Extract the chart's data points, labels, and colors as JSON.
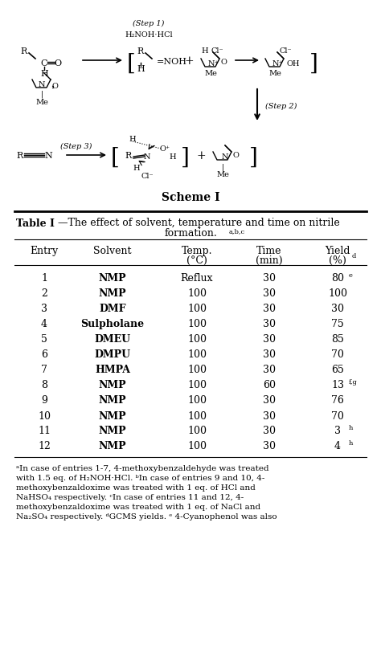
{
  "scheme_label": "Scheme I",
  "table_title_bold": "Table I",
  "table_title_rest": "—The effect of solvent, temperature and time on nitrile",
  "table_title_line2": "formation.",
  "table_title_super": "a,b,c",
  "col_headers": [
    "Entry",
    "Solvent",
    "Temp.",
    "(°C)",
    "Time",
    "(min)",
    "Yield",
    "(%)"
  ],
  "col_header_super": "d",
  "rows": [
    [
      "1",
      "NMP",
      "Reflux",
      "30",
      "80",
      "e",
      "",
      ""
    ],
    [
      "2",
      "NMP",
      "100",
      "30",
      "100",
      "",
      "",
      ""
    ],
    [
      "3",
      "DMF",
      "100",
      "30",
      "30",
      "",
      "",
      ""
    ],
    [
      "4",
      "Sulpholane",
      "100",
      "30",
      "75",
      "",
      "",
      ""
    ],
    [
      "5",
      "DMEU",
      "100",
      "30",
      "85",
      "",
      "",
      ""
    ],
    [
      "6",
      "DMPU",
      "100",
      "30",
      "70",
      "",
      "",
      ""
    ],
    [
      "7",
      "HMPA",
      "100",
      "30",
      "65",
      "",
      "",
      ""
    ],
    [
      "8",
      "NMP",
      "100",
      "60",
      "13",
      "f,g",
      "",
      ""
    ],
    [
      "9",
      "NMP",
      "100",
      "30",
      "76",
      "",
      "",
      ""
    ],
    [
      "10",
      "NMP",
      "100",
      "30",
      "70",
      "",
      "",
      ""
    ],
    [
      "11",
      "NMP",
      "100",
      "30",
      "3",
      "h",
      "",
      ""
    ],
    [
      "12",
      "NMP",
      "100",
      "30",
      "4",
      "h",
      "",
      ""
    ]
  ],
  "footnote_lines": [
    "ᵃIn case of entries 1-7, 4-methoxybenzaldehyde was treated with 1.5 eq. of H₂NOH·HCl. ᵇIn case of entries 9 and 10, 4-methoxybenzaldoxime was treated with 1 eq. of HCl and NaHSO₄ respectively. ᶜIn case of entries 11 and 12, 4-methoxybenzaldoxime was treated with 1 eq. of NaCl and Na₂SO₄ respectively. ᵈGCMS yields. ᵉ 4-Cyanophenol was also"
  ],
  "bg_color": "#ffffff"
}
